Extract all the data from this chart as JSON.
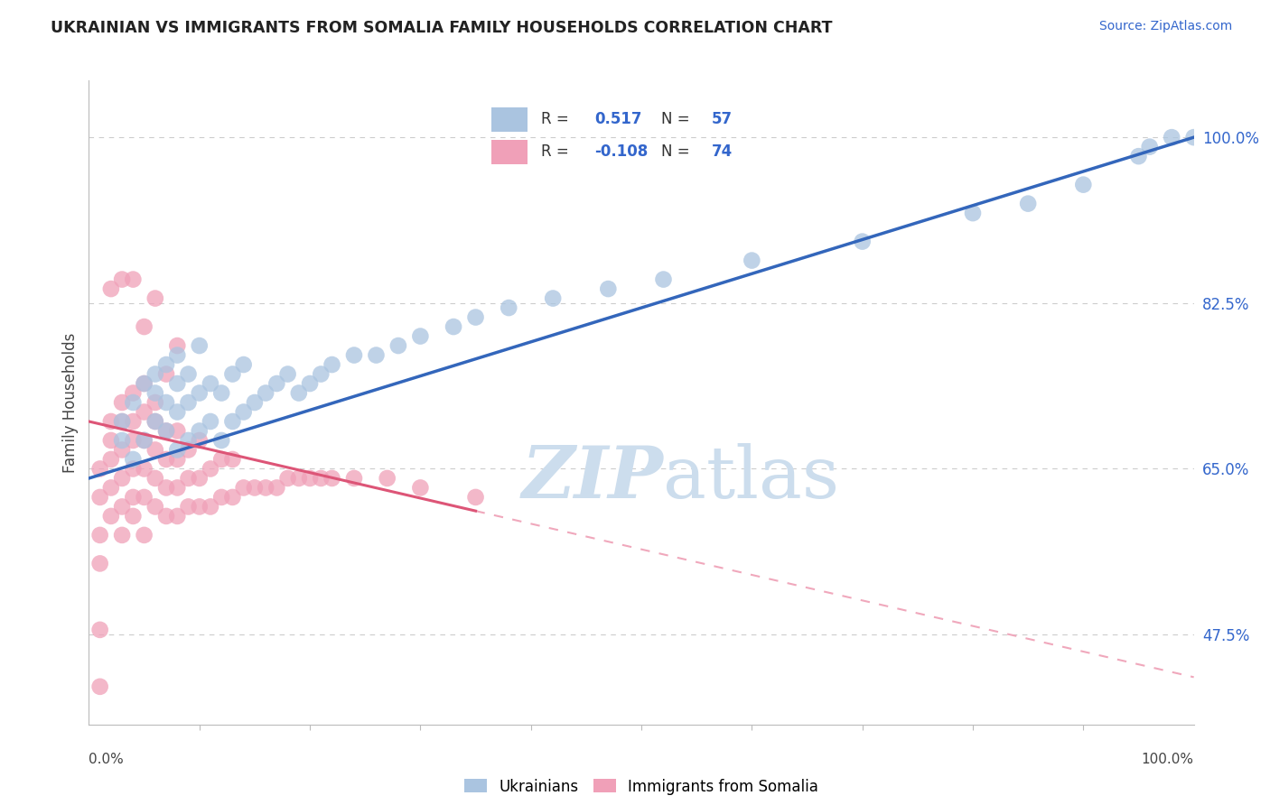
{
  "title": "UKRAINIAN VS IMMIGRANTS FROM SOMALIA FAMILY HOUSEHOLDS CORRELATION CHART",
  "source": "Source: ZipAtlas.com",
  "ylabel": "Family Households",
  "yticks": [
    47.5,
    65.0,
    82.5,
    100.0
  ],
  "ytick_labels": [
    "47.5%",
    "65.0%",
    "82.5%",
    "100.0%"
  ],
  "xmin": 0.0,
  "xmax": 100.0,
  "ymin": 38.0,
  "ymax": 106.0,
  "r_blue": 0.517,
  "n_blue": 57,
  "r_pink": -0.108,
  "n_pink": 74,
  "blue_color": "#aac4e0",
  "pink_color": "#f0a0b8",
  "blue_line_color": "#3366bb",
  "pink_line_solid_color": "#dd5577",
  "pink_line_dash_color": "#f0a8bc",
  "watermark_zip": "ZIP",
  "watermark_atlas": "atlas",
  "watermark_color": "#ccdded",
  "legend_r_color": "#3366cc",
  "legend_text_color": "#333333",
  "blue_dots_x": [
    3,
    3,
    4,
    4,
    5,
    5,
    6,
    6,
    6,
    7,
    7,
    7,
    8,
    8,
    8,
    8,
    9,
    9,
    9,
    10,
    10,
    10,
    11,
    11,
    12,
    12,
    13,
    13,
    14,
    14,
    15,
    16,
    17,
    18,
    19,
    20,
    21,
    22,
    24,
    26,
    28,
    30,
    33,
    35,
    38,
    42,
    47,
    52,
    60,
    70,
    80,
    85,
    90,
    95,
    96,
    98,
    100
  ],
  "blue_dots_y": [
    68,
    70,
    66,
    72,
    68,
    74,
    70,
    73,
    75,
    69,
    72,
    76,
    67,
    71,
    74,
    77,
    68,
    72,
    75,
    69,
    73,
    78,
    70,
    74,
    68,
    73,
    70,
    75,
    71,
    76,
    72,
    73,
    74,
    75,
    73,
    74,
    75,
    76,
    77,
    77,
    78,
    79,
    80,
    81,
    82,
    83,
    84,
    85,
    87,
    89,
    92,
    93,
    95,
    98,
    99,
    100,
    100
  ],
  "pink_dots_x": [
    1,
    1,
    1,
    1,
    2,
    2,
    2,
    2,
    2,
    3,
    3,
    3,
    3,
    3,
    3,
    4,
    4,
    4,
    4,
    4,
    4,
    5,
    5,
    5,
    5,
    5,
    5,
    6,
    6,
    6,
    6,
    6,
    7,
    7,
    7,
    7,
    8,
    8,
    8,
    8,
    9,
    9,
    9,
    10,
    10,
    10,
    11,
    11,
    12,
    12,
    13,
    13,
    14,
    15,
    16,
    17,
    18,
    19,
    20,
    21,
    22,
    24,
    27,
    30,
    35,
    7,
    8,
    5,
    6,
    4,
    3,
    2,
    1,
    1
  ],
  "pink_dots_y": [
    55,
    58,
    62,
    65,
    60,
    63,
    66,
    68,
    70,
    58,
    61,
    64,
    67,
    70,
    72,
    60,
    62,
    65,
    68,
    70,
    73,
    58,
    62,
    65,
    68,
    71,
    74,
    61,
    64,
    67,
    70,
    72,
    60,
    63,
    66,
    69,
    60,
    63,
    66,
    69,
    61,
    64,
    67,
    61,
    64,
    68,
    61,
    65,
    62,
    66,
    62,
    66,
    63,
    63,
    63,
    63,
    64,
    64,
    64,
    64,
    64,
    64,
    64,
    63,
    62,
    75,
    78,
    80,
    83,
    85,
    85,
    84,
    48,
    42
  ],
  "pink_solid_xmax": 35,
  "blue_line_x0": 0,
  "blue_line_x1": 100,
  "blue_line_y0": 64,
  "blue_line_y1": 100,
  "pink_line_x0": 0,
  "pink_line_x1": 100,
  "pink_line_y0": 70,
  "pink_line_y1": 43
}
